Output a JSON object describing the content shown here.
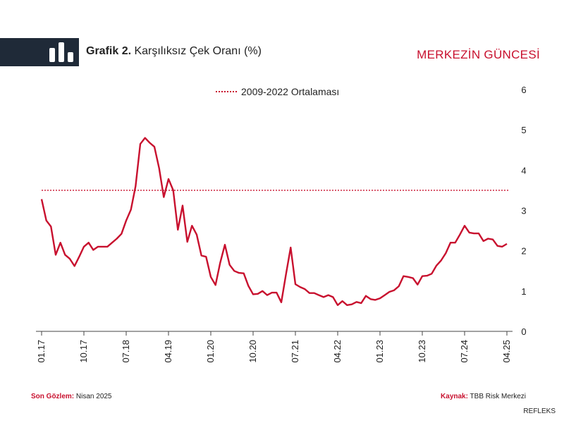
{
  "header": {
    "title_bold": "Grafik 2.",
    "title_rest": "Karşılıksız Çek Oranı (%)",
    "brand": "MERKEZİN GÜNCESİ"
  },
  "colors": {
    "accent": "#c8102e",
    "header_band": "#1f2a38",
    "axis": "#444444"
  },
  "logo": {
    "icon": "bar-chart-icon"
  },
  "footer": {
    "observation_label": "Son Gözlem:",
    "observation_value": "Nisan 2025",
    "source_label": "Kaynak:",
    "source_value": "TBB Risk Merkezi",
    "credit": "REFLEKS"
  },
  "chart_data": {
    "type": "line",
    "title": "Grafik 2. Karşılıksız Çek Oranı (%)",
    "x_tick_labels": [
      "01.17",
      "10.17",
      "07.18",
      "04.19",
      "01.20",
      "10.20",
      "07.21",
      "04.22",
      "01.23",
      "10.23",
      "07.24",
      "04.25"
    ],
    "x_range": [
      "01.17",
      "04.25"
    ],
    "ylim": [
      0,
      6
    ],
    "y_ticks": [
      0,
      1,
      2,
      3,
      4,
      5,
      6
    ],
    "y_axis_side": "right",
    "grid": false,
    "legend_position": "top-center",
    "reference_line": {
      "name": "2009-2022 Ortalaması",
      "value": 3.5,
      "style": "dotted"
    },
    "series": [
      {
        "values": [
          3.28,
          2.75,
          2.6,
          1.9,
          2.2,
          1.9,
          1.8,
          1.62,
          1.85,
          2.1,
          2.2,
          2.02,
          2.1,
          2.1,
          2.1,
          2.2,
          2.3,
          2.42,
          2.75,
          3.02,
          3.6,
          4.65,
          4.8,
          4.68,
          4.58,
          4.05,
          3.33,
          3.78,
          3.5,
          2.52,
          3.12,
          2.22,
          2.62,
          2.4,
          1.88,
          1.85,
          1.35,
          1.15,
          1.7,
          2.15,
          1.65,
          1.5,
          1.45,
          1.44,
          1.13,
          0.92,
          0.93,
          1.0,
          0.9,
          0.96,
          0.96,
          0.72,
          1.42,
          2.08,
          1.17,
          1.1,
          1.05,
          0.95,
          0.95,
          0.9,
          0.85,
          0.9,
          0.85,
          0.65,
          0.75,
          0.65,
          0.67,
          0.73,
          0.7,
          0.88,
          0.8,
          0.78,
          0.82,
          0.9,
          0.98,
          1.02,
          1.12,
          1.37,
          1.35,
          1.32,
          1.16,
          1.37,
          1.38,
          1.43,
          1.63,
          1.76,
          1.94,
          2.2,
          2.2,
          2.4,
          2.62,
          2.45,
          2.43,
          2.43,
          2.24,
          2.3,
          2.28,
          2.12,
          2.1,
          2.17
        ]
      }
    ]
  }
}
